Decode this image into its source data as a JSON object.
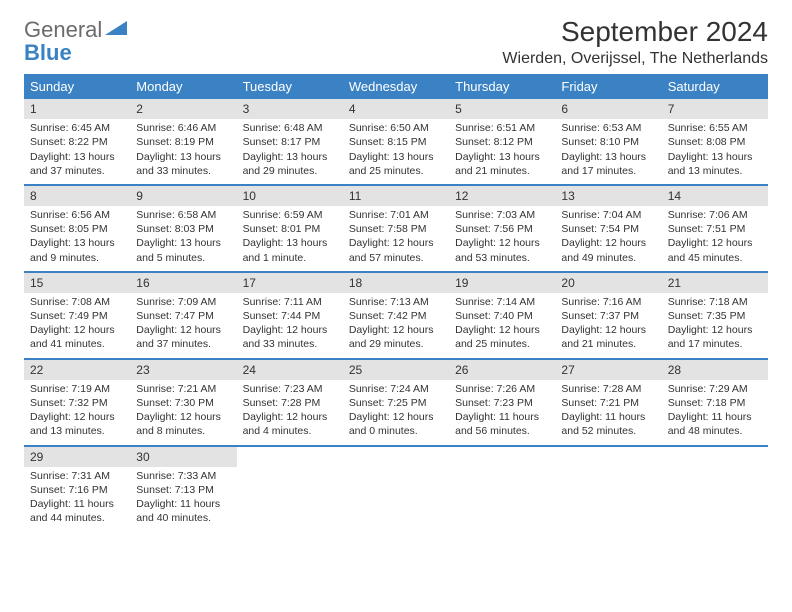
{
  "logo": {
    "text_top": "General",
    "text_bottom": "Blue"
  },
  "title": "September 2024",
  "location": "Wierden, Overijssel, The Netherlands",
  "colors": {
    "header_bg": "#3b82c4",
    "logo_gray": "#6b6b6b",
    "logo_blue": "#3b82c4",
    "shade_bg": "#e3e3e3",
    "rule": "#3b82c4"
  },
  "day_names": [
    "Sunday",
    "Monday",
    "Tuesday",
    "Wednesday",
    "Thursday",
    "Friday",
    "Saturday"
  ],
  "weeks": [
    [
      {
        "n": "1",
        "shade": true,
        "sr": "Sunrise: 6:45 AM",
        "ss": "Sunset: 8:22 PM",
        "dl": "Daylight: 13 hours and 37 minutes."
      },
      {
        "n": "2",
        "shade": true,
        "sr": "Sunrise: 6:46 AM",
        "ss": "Sunset: 8:19 PM",
        "dl": "Daylight: 13 hours and 33 minutes."
      },
      {
        "n": "3",
        "shade": true,
        "sr": "Sunrise: 6:48 AM",
        "ss": "Sunset: 8:17 PM",
        "dl": "Daylight: 13 hours and 29 minutes."
      },
      {
        "n": "4",
        "shade": true,
        "sr": "Sunrise: 6:50 AM",
        "ss": "Sunset: 8:15 PM",
        "dl": "Daylight: 13 hours and 25 minutes."
      },
      {
        "n": "5",
        "shade": true,
        "sr": "Sunrise: 6:51 AM",
        "ss": "Sunset: 8:12 PM",
        "dl": "Daylight: 13 hours and 21 minutes."
      },
      {
        "n": "6",
        "shade": true,
        "sr": "Sunrise: 6:53 AM",
        "ss": "Sunset: 8:10 PM",
        "dl": "Daylight: 13 hours and 17 minutes."
      },
      {
        "n": "7",
        "shade": true,
        "sr": "Sunrise: 6:55 AM",
        "ss": "Sunset: 8:08 PM",
        "dl": "Daylight: 13 hours and 13 minutes."
      }
    ],
    [
      {
        "n": "8",
        "shade": true,
        "sr": "Sunrise: 6:56 AM",
        "ss": "Sunset: 8:05 PM",
        "dl": "Daylight: 13 hours and 9 minutes."
      },
      {
        "n": "9",
        "shade": true,
        "sr": "Sunrise: 6:58 AM",
        "ss": "Sunset: 8:03 PM",
        "dl": "Daylight: 13 hours and 5 minutes."
      },
      {
        "n": "10",
        "shade": true,
        "sr": "Sunrise: 6:59 AM",
        "ss": "Sunset: 8:01 PM",
        "dl": "Daylight: 13 hours and 1 minute."
      },
      {
        "n": "11",
        "shade": true,
        "sr": "Sunrise: 7:01 AM",
        "ss": "Sunset: 7:58 PM",
        "dl": "Daylight: 12 hours and 57 minutes."
      },
      {
        "n": "12",
        "shade": true,
        "sr": "Sunrise: 7:03 AM",
        "ss": "Sunset: 7:56 PM",
        "dl": "Daylight: 12 hours and 53 minutes."
      },
      {
        "n": "13",
        "shade": true,
        "sr": "Sunrise: 7:04 AM",
        "ss": "Sunset: 7:54 PM",
        "dl": "Daylight: 12 hours and 49 minutes."
      },
      {
        "n": "14",
        "shade": true,
        "sr": "Sunrise: 7:06 AM",
        "ss": "Sunset: 7:51 PM",
        "dl": "Daylight: 12 hours and 45 minutes."
      }
    ],
    [
      {
        "n": "15",
        "shade": true,
        "sr": "Sunrise: 7:08 AM",
        "ss": "Sunset: 7:49 PM",
        "dl": "Daylight: 12 hours and 41 minutes."
      },
      {
        "n": "16",
        "shade": true,
        "sr": "Sunrise: 7:09 AM",
        "ss": "Sunset: 7:47 PM",
        "dl": "Daylight: 12 hours and 37 minutes."
      },
      {
        "n": "17",
        "shade": true,
        "sr": "Sunrise: 7:11 AM",
        "ss": "Sunset: 7:44 PM",
        "dl": "Daylight: 12 hours and 33 minutes."
      },
      {
        "n": "18",
        "shade": true,
        "sr": "Sunrise: 7:13 AM",
        "ss": "Sunset: 7:42 PM",
        "dl": "Daylight: 12 hours and 29 minutes."
      },
      {
        "n": "19",
        "shade": true,
        "sr": "Sunrise: 7:14 AM",
        "ss": "Sunset: 7:40 PM",
        "dl": "Daylight: 12 hours and 25 minutes."
      },
      {
        "n": "20",
        "shade": true,
        "sr": "Sunrise: 7:16 AM",
        "ss": "Sunset: 7:37 PM",
        "dl": "Daylight: 12 hours and 21 minutes."
      },
      {
        "n": "21",
        "shade": true,
        "sr": "Sunrise: 7:18 AM",
        "ss": "Sunset: 7:35 PM",
        "dl": "Daylight: 12 hours and 17 minutes."
      }
    ],
    [
      {
        "n": "22",
        "shade": true,
        "sr": "Sunrise: 7:19 AM",
        "ss": "Sunset: 7:32 PM",
        "dl": "Daylight: 12 hours and 13 minutes."
      },
      {
        "n": "23",
        "shade": true,
        "sr": "Sunrise: 7:21 AM",
        "ss": "Sunset: 7:30 PM",
        "dl": "Daylight: 12 hours and 8 minutes."
      },
      {
        "n": "24",
        "shade": true,
        "sr": "Sunrise: 7:23 AM",
        "ss": "Sunset: 7:28 PM",
        "dl": "Daylight: 12 hours and 4 minutes."
      },
      {
        "n": "25",
        "shade": true,
        "sr": "Sunrise: 7:24 AM",
        "ss": "Sunset: 7:25 PM",
        "dl": "Daylight: 12 hours and 0 minutes."
      },
      {
        "n": "26",
        "shade": true,
        "sr": "Sunrise: 7:26 AM",
        "ss": "Sunset: 7:23 PM",
        "dl": "Daylight: 11 hours and 56 minutes."
      },
      {
        "n": "27",
        "shade": true,
        "sr": "Sunrise: 7:28 AM",
        "ss": "Sunset: 7:21 PM",
        "dl": "Daylight: 11 hours and 52 minutes."
      },
      {
        "n": "28",
        "shade": true,
        "sr": "Sunrise: 7:29 AM",
        "ss": "Sunset: 7:18 PM",
        "dl": "Daylight: 11 hours and 48 minutes."
      }
    ],
    [
      {
        "n": "29",
        "shade": true,
        "sr": "Sunrise: 7:31 AM",
        "ss": "Sunset: 7:16 PM",
        "dl": "Daylight: 11 hours and 44 minutes."
      },
      {
        "n": "30",
        "shade": true,
        "sr": "Sunrise: 7:33 AM",
        "ss": "Sunset: 7:13 PM",
        "dl": "Daylight: 11 hours and 40 minutes."
      },
      null,
      null,
      null,
      null,
      null
    ]
  ]
}
